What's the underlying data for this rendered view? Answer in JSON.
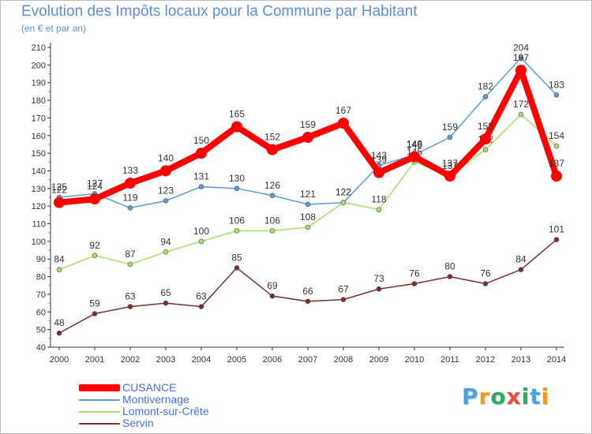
{
  "chart_data": {
    "type": "line",
    "title": "Evolution des Impôts locaux pour la Commune par Habitant",
    "subtitle": "(en € et par an)",
    "xlabel": "",
    "ylabel": "",
    "x": [
      "2000",
      "2001",
      "2002",
      "2003",
      "2004",
      "2005",
      "2006",
      "2007",
      "2008",
      "2009",
      "2010",
      "2011",
      "2012",
      "2013",
      "2014"
    ],
    "ylim": [
      40,
      210
    ],
    "yticks": [
      40,
      50,
      60,
      70,
      80,
      90,
      100,
      110,
      120,
      130,
      140,
      150,
      160,
      170,
      180,
      190,
      200,
      210
    ],
    "grid": false,
    "legend_position": "bottom-left",
    "series": [
      {
        "name": "Montivernage",
        "color": "#5b9bd5",
        "values": [
          125,
          127,
          119,
          123,
          131,
          130,
          126,
          121,
          122,
          143,
          149,
          159,
          182,
          204,
          183
        ]
      },
      {
        "name": "Lomont-sur-Crête",
        "color": "#a7de6a",
        "values": [
          84,
          92,
          87,
          94,
          100,
          106,
          106,
          108,
          122,
          118,
          145,
          137,
          152,
          172,
          154
        ]
      },
      {
        "name": "Servin",
        "color": "#7a2f2f",
        "values": [
          48,
          59,
          63,
          65,
          63,
          85,
          69,
          66,
          67,
          73,
          76,
          80,
          76,
          84,
          101
        ]
      },
      {
        "name": "CUSANCE",
        "color": "#ff0000",
        "values": [
          122,
          124,
          133,
          140,
          150,
          165,
          152,
          159,
          167,
          139,
          148,
          137,
          158,
          197,
          137
        ]
      }
    ],
    "legend_order": [
      "CUSANCE",
      "Montivernage",
      "Lomont-sur-Crête",
      "Servin"
    ]
  },
  "logo": {
    "letters": [
      "P",
      "r",
      "o",
      "x",
      "i",
      "t",
      "i"
    ],
    "colors": [
      "#4aa3df",
      "#f39c12",
      "#27ae60",
      "#e74c3c",
      "#27ae60",
      "#4aa3df",
      "#f39c12"
    ]
  }
}
